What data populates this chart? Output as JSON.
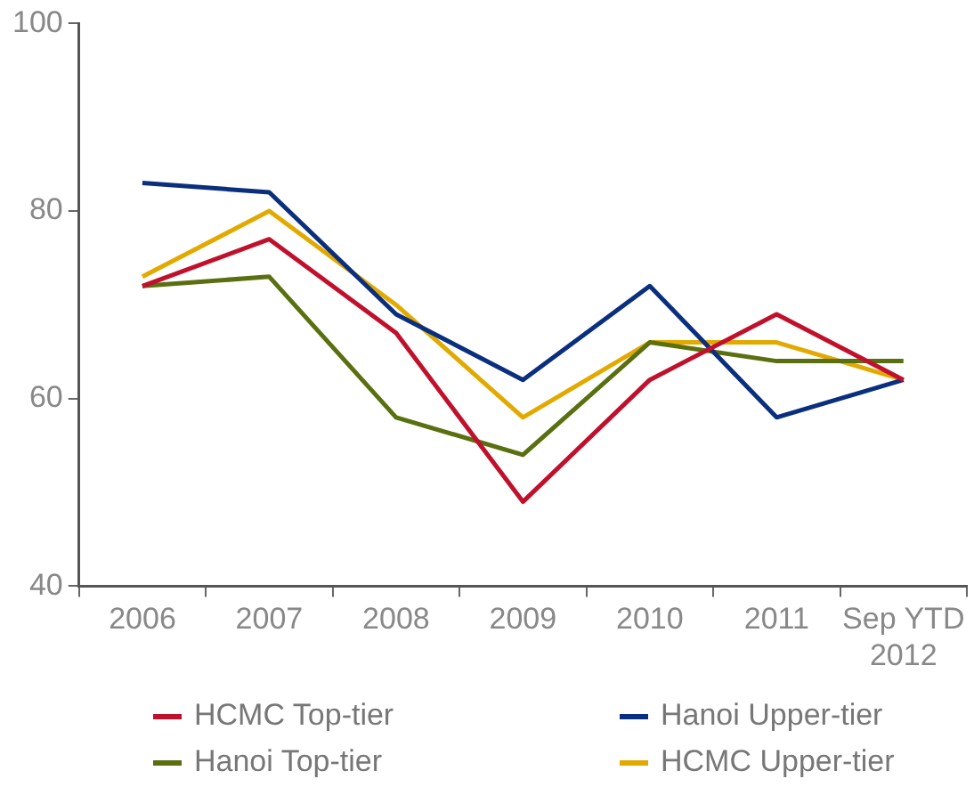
{
  "chart_data": {
    "type": "line",
    "categories": [
      "2006",
      "2007",
      "2008",
      "2009",
      "2010",
      "2011",
      "Sep YTD 2012"
    ],
    "ylim": [
      40,
      100
    ],
    "yticks": [
      40,
      60,
      80,
      100
    ],
    "grid": false,
    "legend": "bottom",
    "marker": "none",
    "line_style": "solid",
    "series": [
      {
        "name": "HCMC Top-tier",
        "color": "#c0102c",
        "values": [
          72,
          77,
          67,
          49,
          62,
          69,
          62
        ]
      },
      {
        "name": "Hanoi Upper-tier",
        "color": "#0a2f7f",
        "values": [
          83,
          82,
          69,
          62,
          72,
          58,
          62
        ]
      },
      {
        "name": "Hanoi Top-tier",
        "color": "#5a7010",
        "values": [
          72,
          73,
          58,
          54,
          66,
          64,
          64
        ]
      },
      {
        "name": "HCMC Upper-tier",
        "color": "#e2aa00",
        "values": [
          73,
          80,
          70,
          58,
          66,
          66,
          62
        ]
      }
    ]
  }
}
